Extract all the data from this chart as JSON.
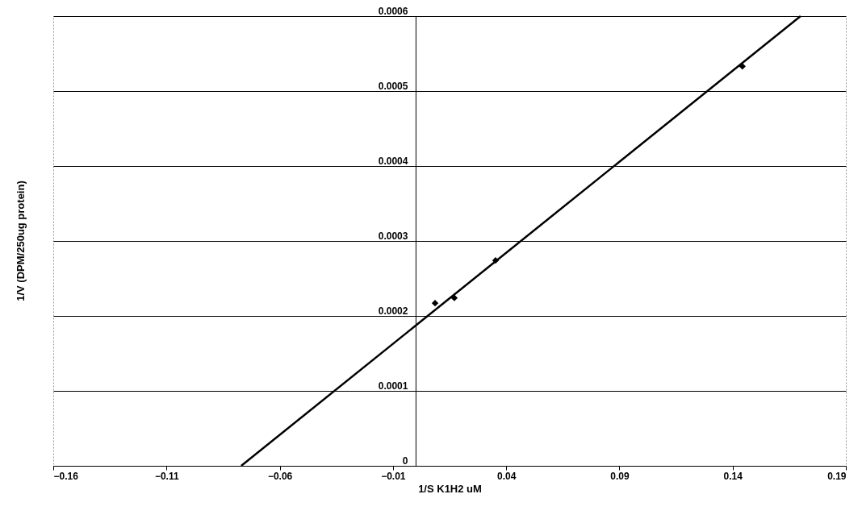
{
  "chart_data": {
    "type": "scatter",
    "xlabel": "1/S K1H2 uM",
    "ylabel": "1/V (DPM/250ug protein)",
    "xlim": [
      -0.16,
      0.19
    ],
    "xticks": [
      -0.16,
      -0.11,
      -0.06,
      -0.01,
      0.04,
      0.09,
      0.14,
      0.19
    ],
    "ylim": [
      0,
      0.0006
    ],
    "yticks": [
      0,
      0.0001,
      0.0002,
      0.0003,
      0.0004,
      0.0005,
      0.0006
    ],
    "grid": "y",
    "marker": "diamond",
    "series": [
      {
        "type": "line",
        "color": "#000000",
        "marker": "none",
        "x": [
          -0.077,
          0.17
        ],
        "values": [
          0,
          0.0006
        ]
      },
      {
        "color": "#000000",
        "x": [
          0.0086,
          0.0171,
          0.0353,
          0.1443
        ],
        "values": [
          0.000217,
          0.000224,
          0.000274,
          0.000533
        ]
      }
    ]
  }
}
